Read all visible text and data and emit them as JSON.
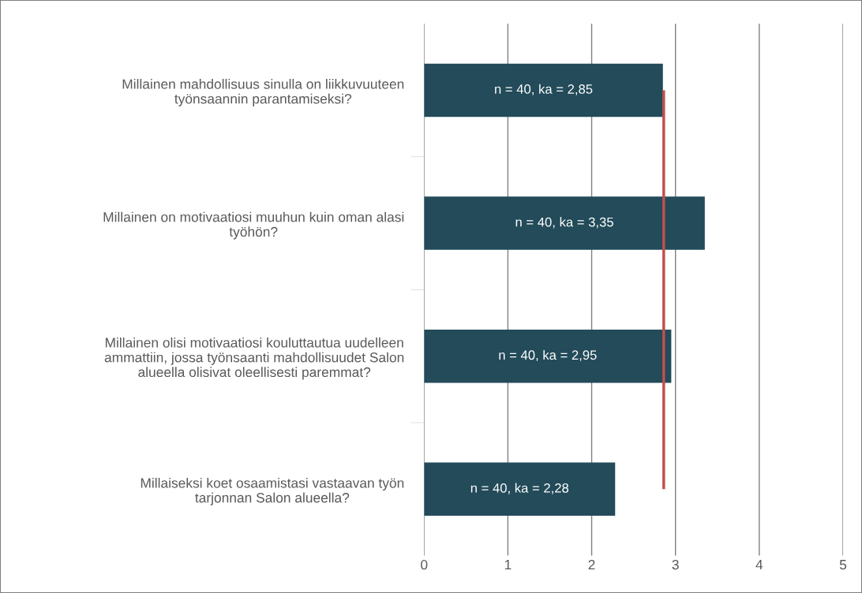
{
  "chart_data": {
    "type": "bar",
    "orientation": "horizontal",
    "categories": [
      "Millainen mahdollisuus sinulla on liikkuvuuteen\ntyönsaannin parantamiseksi?",
      "Millainen on motivaatiosi muuhun kuin oman alasi\ntyöhön?",
      "Millainen olisi motivaatiosi kouluttautua uudelleen\nammattiin, jossa työnsaanti mahdollisuudet Salon\nalueella olisivat oleellisesti paremmat?",
      "Millaiseksi koet osaamistasi vastaavan työn\ntarjonnan Salon alueella?"
    ],
    "values": [
      2.85,
      3.35,
      2.95,
      2.28
    ],
    "color": "#234b5a",
    "value_labels": [
      "n = 40, ka = 2,85",
      "n = 40, ka = 3,35",
      "n = 40, ka = 2,95",
      "n = 40, ka = 2,28"
    ],
    "xlim": [
      0,
      5
    ],
    "xticks": [
      0,
      1,
      2,
      3,
      4,
      5
    ],
    "grid": "x",
    "ref_lines": [
      {
        "axis": "x",
        "value": 2.86,
        "color": "#c0504d"
      }
    ]
  }
}
